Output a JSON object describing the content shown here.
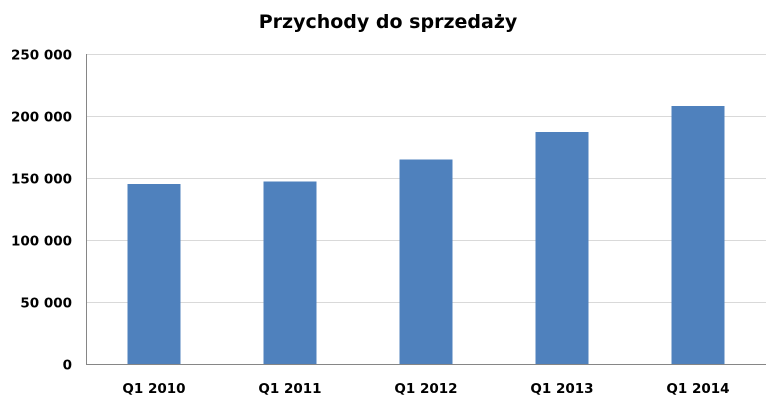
{
  "chart_data": {
    "type": "bar",
    "title": "Przychody do sprzedaży",
    "xlabel": "",
    "ylabel": "",
    "categories": [
      "Q1 2010",
      "Q1 2011",
      "Q1 2012",
      "Q1 2013",
      "Q1 2014"
    ],
    "series": [
      {
        "values": [
          145000,
          147000,
          165000,
          187000,
          208000
        ]
      }
    ],
    "ylim": [
      0,
      250000
    ],
    "yticks": [
      0,
      50000,
      100000,
      150000,
      200000,
      250000
    ],
    "ytick_labels": [
      "0",
      "50 000",
      "100 000",
      "150 000",
      "200 000",
      "250 000"
    ],
    "grid": true,
    "legend": "none",
    "bar_color": "#4f81bd",
    "grid_color": "#d9d9d9",
    "axis_color": "#868686"
  }
}
